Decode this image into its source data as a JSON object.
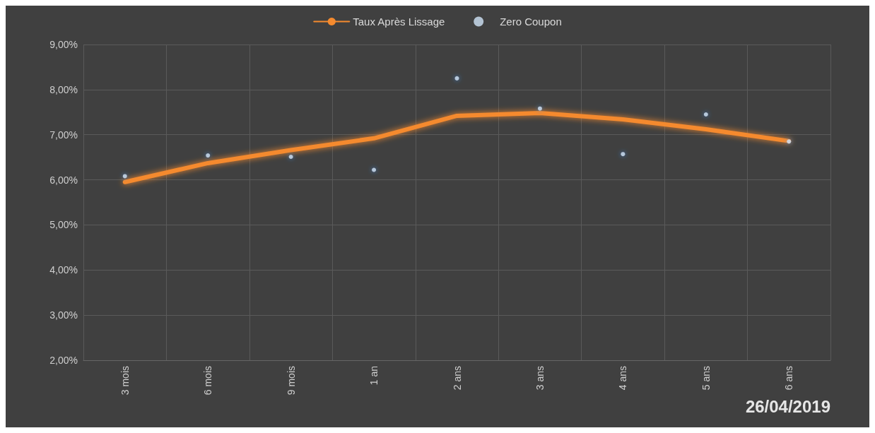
{
  "chart_data": {
    "type": "line",
    "categories": [
      "3 mois",
      "6 mois",
      "9 mois",
      "1 an",
      "2 ans",
      "3 ans",
      "4 ans",
      "5 ans",
      "6 ans"
    ],
    "series": [
      {
        "name": "Taux Après Lissage",
        "color": "#f58a2e",
        "values": [
          5.95,
          6.37,
          6.66,
          6.92,
          7.42,
          7.48,
          7.34,
          7.12,
          6.86
        ]
      },
      {
        "name": "Zero Coupon",
        "type": "scatter",
        "color": "#cfe3f7",
        "values": [
          6.08,
          6.54,
          6.51,
          6.22,
          8.25,
          7.58,
          6.57,
          7.45,
          6.85
        ]
      }
    ],
    "ylim": [
      2,
      9
    ],
    "yticks": [
      {
        "value": 2,
        "label": "2,00%"
      },
      {
        "value": 3,
        "label": "3,00%"
      },
      {
        "value": 4,
        "label": "4,00%"
      },
      {
        "value": 5,
        "label": "5,00%"
      },
      {
        "value": 6,
        "label": "6,00%"
      },
      {
        "value": 7,
        "label": "7,00%"
      },
      {
        "value": 8,
        "label": "8,00%"
      },
      {
        "value": 9,
        "label": "9,00%"
      }
    ],
    "grid": true,
    "legend": "top",
    "annotations": [
      "26/04/2019"
    ]
  }
}
